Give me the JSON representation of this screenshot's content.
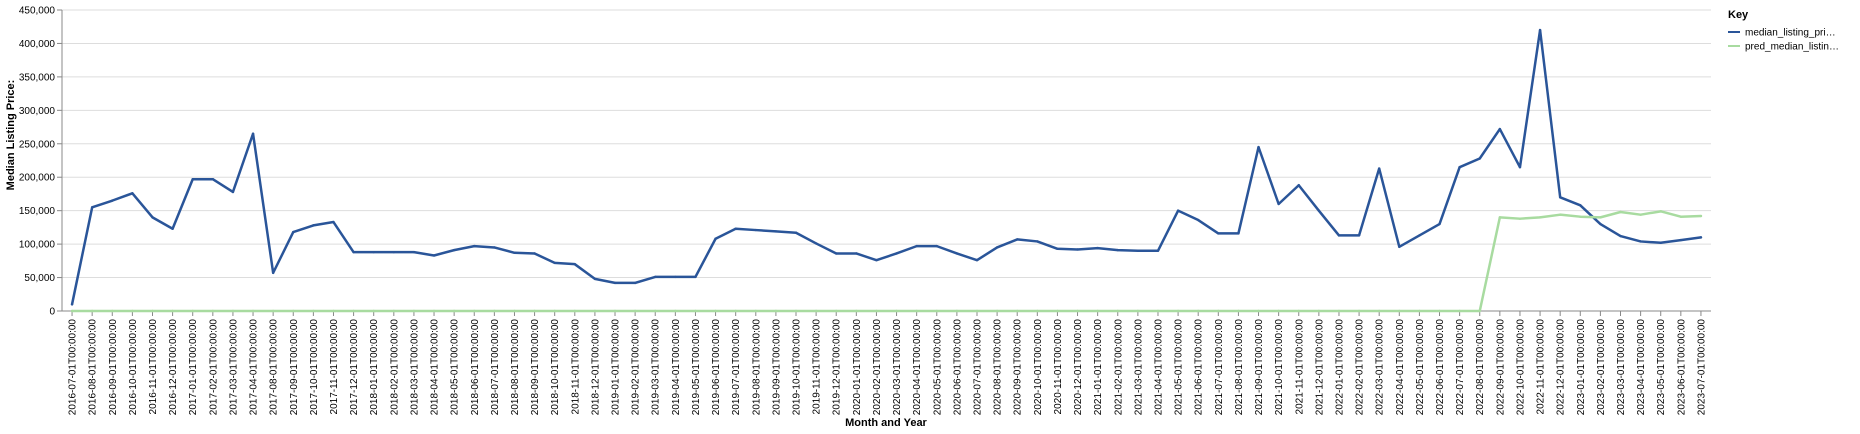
{
  "chart_data": {
    "type": "line",
    "title": "",
    "xlabel": "Month and Year",
    "ylabel": "Median Listing Price:",
    "ylim": [
      0,
      450000
    ],
    "y_ticks": [
      0,
      50000,
      100000,
      150000,
      200000,
      250000,
      300000,
      350000,
      400000,
      450000
    ],
    "y_tick_labels": [
      "0",
      "50,000",
      "100,000",
      "150,000",
      "200,000",
      "250,000",
      "300,000",
      "350,000",
      "400,000",
      "450,000"
    ],
    "grid": true,
    "legend": {
      "title": "Key",
      "position": "right"
    },
    "x": [
      "2016-07-01T00:00:00",
      "2016-08-01T00:00:00",
      "2016-09-01T00:00:00",
      "2016-10-01T00:00:00",
      "2016-11-01T00:00:00",
      "2016-12-01T00:00:00",
      "2017-01-01T00:00:00",
      "2017-02-01T00:00:00",
      "2017-03-01T00:00:00",
      "2017-04-01T00:00:00",
      "2017-08-01T00:00:00",
      "2017-09-01T00:00:00",
      "2017-10-01T00:00:00",
      "2017-11-01T00:00:00",
      "2017-12-01T00:00:00",
      "2018-01-01T00:00:00",
      "2018-02-01T00:00:00",
      "2018-03-01T00:00:00",
      "2018-04-01T00:00:00",
      "2018-05-01T00:00:00",
      "2018-06-01T00:00:00",
      "2018-07-01T00:00:00",
      "2018-08-01T00:00:00",
      "2018-09-01T00:00:00",
      "2018-10-01T00:00:00",
      "2018-11-01T00:00:00",
      "2018-12-01T00:00:00",
      "2019-01-01T00:00:00",
      "2019-02-01T00:00:00",
      "2019-03-01T00:00:00",
      "2019-04-01T00:00:00",
      "2019-05-01T00:00:00",
      "2019-06-01T00:00:00",
      "2019-07-01T00:00:00",
      "2019-08-01T00:00:00",
      "2019-09-01T00:00:00",
      "2019-10-01T00:00:00",
      "2019-11-01T00:00:00",
      "2019-12-01T00:00:00",
      "2020-01-01T00:00:00",
      "2020-02-01T00:00:00",
      "2020-03-01T00:00:00",
      "2020-04-01T00:00:00",
      "2020-05-01T00:00:00",
      "2020-06-01T00:00:00",
      "2020-07-01T00:00:00",
      "2020-08-01T00:00:00",
      "2020-09-01T00:00:00",
      "2020-10-01T00:00:00",
      "2020-11-01T00:00:00",
      "2020-12-01T00:00:00",
      "2021-01-01T00:00:00",
      "2021-02-01T00:00:00",
      "2021-03-01T00:00:00",
      "2021-04-01T00:00:00",
      "2021-05-01T00:00:00",
      "2021-06-01T00:00:00",
      "2021-07-01T00:00:00",
      "2021-08-01T00:00:00",
      "2021-09-01T00:00:00",
      "2021-10-01T00:00:00",
      "2021-11-01T00:00:00",
      "2021-12-01T00:00:00",
      "2022-01-01T00:00:00",
      "2022-02-01T00:00:00",
      "2022-03-01T00:00:00",
      "2022-04-01T00:00:00",
      "2022-05-01T00:00:00",
      "2022-06-01T00:00:00",
      "2022-07-01T00:00:00",
      "2022-08-01T00:00:00",
      "2022-09-01T00:00:00",
      "2022-10-01T00:00:00",
      "2022-11-01T00:00:00",
      "2022-12-01T00:00:00",
      "2023-01-01T00:00:00",
      "2023-02-01T00:00:00",
      "2023-03-01T00:00:00",
      "2023-04-01T00:00:00",
      "2023-05-01T00:00:00",
      "2023-06-01T00:00:00",
      "2023-07-01T00:00:00"
    ],
    "series": [
      {
        "name": "median_listing_pri…",
        "color": "#2a5599",
        "values": [
          10000,
          155000,
          165000,
          176000,
          140000,
          123000,
          197000,
          197000,
          178000,
          265000,
          57000,
          118000,
          128000,
          133000,
          88000,
          88000,
          88000,
          88000,
          83000,
          91000,
          97000,
          95000,
          87000,
          86000,
          72000,
          70000,
          48000,
          42000,
          42000,
          51000,
          51000,
          51000,
          108000,
          123000,
          121000,
          119000,
          117000,
          101000,
          86000,
          86000,
          76000,
          86000,
          97000,
          97000,
          86000,
          76000,
          95000,
          107000,
          104000,
          93000,
          92000,
          94000,
          91000,
          90000,
          90000,
          150000,
          136000,
          116000,
          116000,
          245000,
          160000,
          188000,
          150000,
          113000,
          113000,
          213000,
          96000,
          113000,
          130000,
          215000,
          228000,
          272000,
          215000,
          420000,
          170000,
          158000,
          130000,
          112000,
          104000,
          102000,
          106000,
          110000
        ]
      },
      {
        "name": "pred_median_listin…",
        "color": "#a8dba0",
        "values": [
          0,
          0,
          0,
          0,
          0,
          0,
          0,
          0,
          0,
          0,
          0,
          0,
          0,
          0,
          0,
          0,
          0,
          0,
          0,
          0,
          0,
          0,
          0,
          0,
          0,
          0,
          0,
          0,
          0,
          0,
          0,
          0,
          0,
          0,
          0,
          0,
          0,
          0,
          0,
          0,
          0,
          0,
          0,
          0,
          0,
          0,
          0,
          0,
          0,
          0,
          0,
          0,
          0,
          0,
          0,
          0,
          0,
          0,
          0,
          0,
          0,
          0,
          0,
          0,
          0,
          0,
          0,
          0,
          0,
          0,
          0,
          140000,
          138000,
          140000,
          144000,
          141000,
          140000,
          148000,
          144000,
          149000,
          141000,
          142000
        ]
      }
    ]
  }
}
